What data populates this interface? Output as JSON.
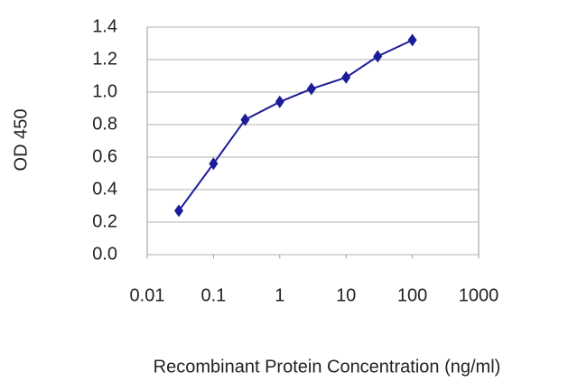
{
  "chart_data": {
    "type": "line",
    "xlabel": "Recombinant Protein Concentration (ng/ml)",
    "ylabel": "OD 450",
    "xscale": "log",
    "x": [
      0.03,
      0.1,
      0.3,
      1,
      3,
      10,
      30,
      100
    ],
    "values": [
      0.27,
      0.56,
      0.83,
      0.94,
      1.02,
      1.09,
      1.22,
      1.32
    ],
    "color": "#1c1c9a",
    "marker": "diamond",
    "xlim": [
      0.01,
      1000
    ],
    "xticks": [
      0.01,
      0.1,
      1,
      10,
      100,
      1000
    ],
    "ylim": [
      0,
      1.4
    ],
    "yticks": [
      {
        "value": 0,
        "label": "0.0"
      },
      0.2,
      0.4,
      0.6,
      0.8,
      {
        "value": 1,
        "label": "1.0"
      },
      1.2,
      1.4
    ],
    "grid": true
  }
}
